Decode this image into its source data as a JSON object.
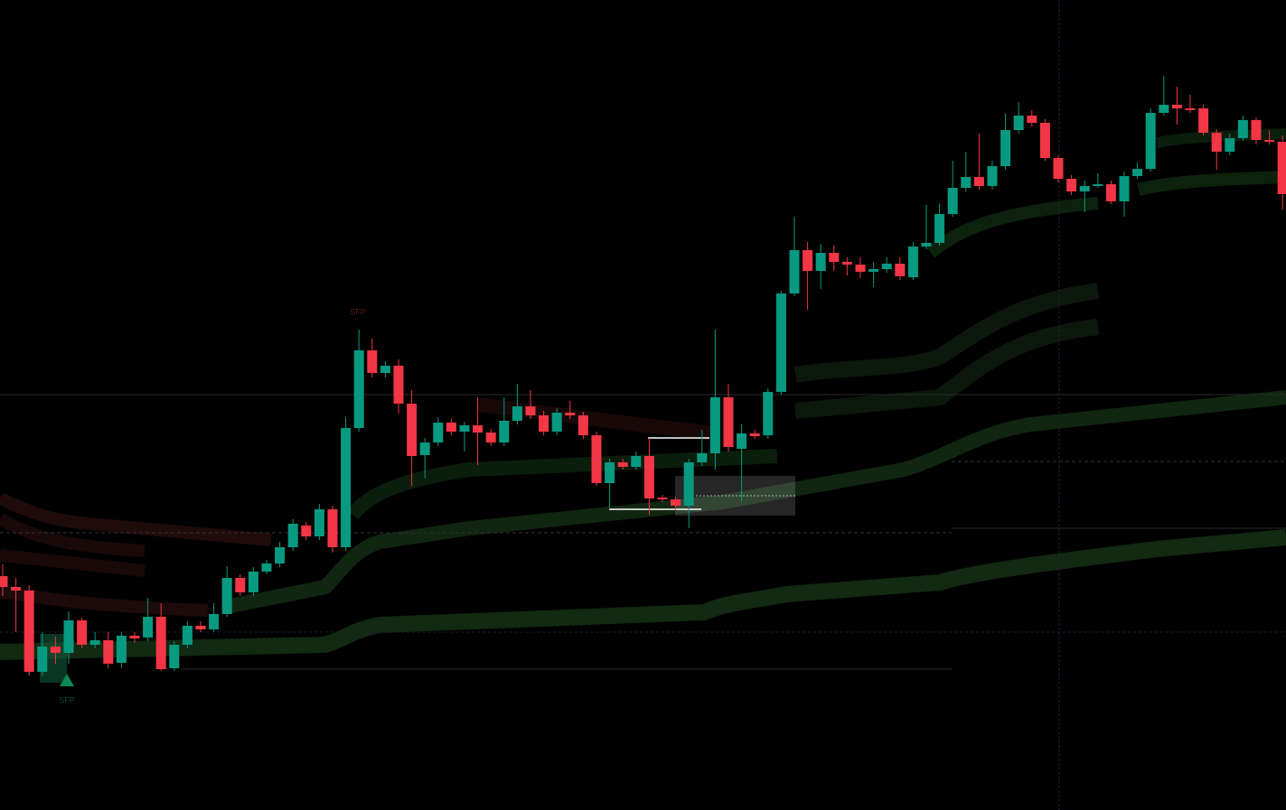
{
  "chart_data": {
    "type": "candlestick",
    "ylim": [
      0,
      897
    ],
    "up_color": "#089981",
    "down_color": "#f23645",
    "annotations": [
      "SFP",
      "SFP"
    ],
    "open": [
      259,
      247,
      243,
      153,
      181,
      174,
      210,
      183,
      188,
      163,
      193,
      191,
      214,
      157,
      183,
      204,
      200,
      217,
      257,
      241,
      264,
      273,
      291,
      315,
      303,
      333,
      291,
      423,
      509,
      484,
      492,
      450,
      393,
      407,
      429,
      419,
      426,
      418,
      407,
      431,
      447,
      437,
      419,
      440,
      437,
      415,
      362,
      385,
      380,
      392,
      346,
      344,
      337,
      385,
      395,
      457,
      400,
      417,
      415,
      463,
      572,
      620,
      597,
      617,
      607,
      604,
      596,
      599,
      605,
      590,
      624,
      628,
      660,
      689,
      701,
      691,
      713,
      753,
      769,
      761,
      722,
      699,
      685,
      691,
      693,
      674,
      702,
      710,
      772,
      781,
      777,
      777,
      750,
      729,
      744,
      764,
      742,
      740
    ],
    "high": [
      272,
      257,
      249,
      197,
      192,
      220,
      213,
      197,
      197,
      197,
      197,
      235,
      229,
      187,
      209,
      209,
      229,
      270,
      261,
      269,
      277,
      297,
      322,
      319,
      339,
      337,
      435,
      532,
      522,
      497,
      499,
      465,
      412,
      435,
      433,
      430,
      457,
      422,
      457,
      472,
      465,
      442,
      445,
      453,
      441,
      419,
      389,
      389,
      397,
      412,
      349,
      347,
      389,
      421,
      532,
      472,
      427,
      421,
      467,
      575,
      657,
      629,
      627,
      625,
      612,
      612,
      607,
      612,
      612,
      629,
      670,
      672,
      719,
      729,
      749,
      719,
      771,
      784,
      775,
      765,
      725,
      703,
      697,
      705,
      697,
      707,
      717,
      777,
      813,
      801,
      792,
      781,
      754,
      749,
      769,
      767,
      752,
      747
    ],
    "low": [
      237,
      197,
      149,
      149,
      162,
      162,
      179,
      179,
      157,
      157,
      185,
      187,
      154,
      154,
      179,
      197,
      197,
      214,
      237,
      237,
      261,
      269,
      287,
      299,
      299,
      285,
      287,
      419,
      479,
      479,
      439,
      359,
      367,
      403,
      415,
      397,
      382,
      403,
      403,
      427,
      433,
      415,
      415,
      433,
      411,
      359,
      335,
      377,
      377,
      327,
      341,
      332,
      312,
      381,
      377,
      397,
      342,
      411,
      411,
      460,
      569,
      554,
      577,
      597,
      592,
      589,
      579,
      595,
      587,
      587,
      621,
      625,
      657,
      685,
      687,
      687,
      709,
      749,
      757,
      719,
      695,
      681,
      662,
      689,
      671,
      657,
      699,
      707,
      769,
      759,
      772,
      747,
      709,
      725,
      741,
      737,
      737,
      665
    ],
    "close": [
      247,
      243,
      153,
      181,
      174,
      210,
      183,
      188,
      162,
      193,
      190,
      214,
      156,
      183,
      204,
      200,
      217,
      257,
      241,
      264,
      273,
      291,
      317,
      303,
      333,
      291,
      423,
      509,
      484,
      492,
      450,
      392,
      407,
      429,
      419,
      426,
      418,
      407,
      431,
      447,
      437,
      419,
      440,
      437,
      415,
      362,
      385,
      380,
      392,
      345,
      344,
      337,
      385,
      395,
      457,
      402,
      417,
      414,
      463,
      572,
      620,
      597,
      617,
      607,
      604,
      596,
      599,
      605,
      591,
      624,
      628,
      660,
      689,
      701,
      691,
      713,
      753,
      769,
      761,
      722,
      699,
      685,
      691,
      693,
      674,
      702,
      710,
      772,
      781,
      777,
      775,
      750,
      729,
      744,
      764,
      742,
      740,
      682
    ]
  }
}
